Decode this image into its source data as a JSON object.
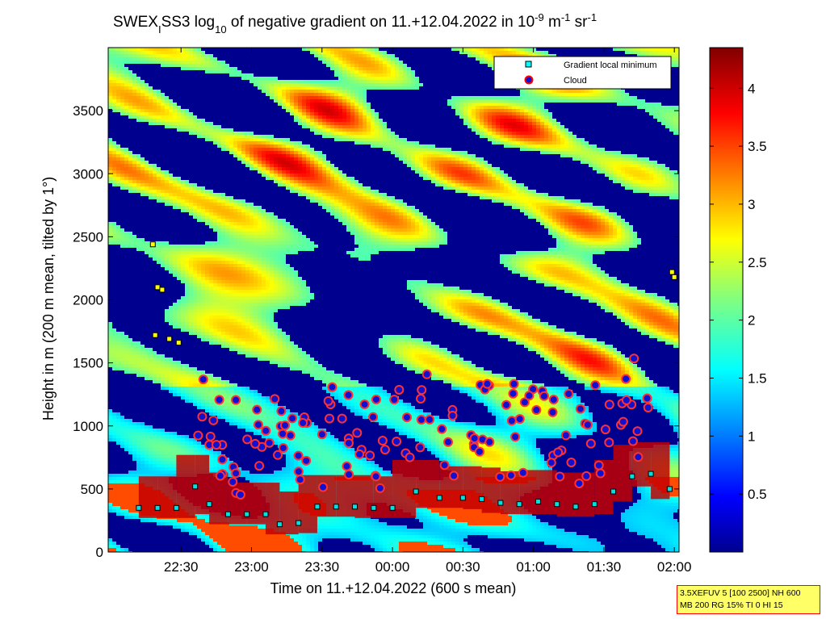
{
  "chart_data": {
    "type": "heatmap",
    "title": {
      "part1": "SWEX",
      "sub1": "I",
      "part2": "SS3 log",
      "sub2": "10",
      "part3": " of negative gradient on 11.+12.04.2022 in 10",
      "sup1": "-9",
      "part4": " m",
      "sup2": "-1",
      "part5": " sr",
      "sup3": "-1"
    },
    "xlabel": "Time on 11.+12.04.2022 (600 s mean)",
    "ylabel": "Height in m (200 m mean, tilted by 1°)",
    "x_ticks": [
      "22:30",
      "23:00",
      "23:30",
      "00:00",
      "00:30",
      "01:00",
      "01:30",
      "02:00"
    ],
    "x_tick_minutes": [
      1350,
      1380,
      1410,
      1440,
      1470,
      1500,
      1530,
      1560
    ],
    "xlim_minutes": [
      1319,
      1562
    ],
    "y_ticks": [
      "0",
      "500",
      "1000",
      "1500",
      "2000",
      "2500",
      "3000",
      "3500"
    ],
    "y_tick_values": [
      0,
      500,
      1000,
      1500,
      2000,
      2500,
      3000,
      3500
    ],
    "ylim": [
      0,
      4000
    ],
    "colorbar": {
      "ticks": [
        "0.5",
        "1",
        "1.5",
        "2",
        "2.5",
        "3",
        "3.5",
        "4"
      ],
      "tick_values": [
        0.5,
        1,
        1.5,
        2,
        2.5,
        3,
        3.5,
        4
      ],
      "range": [
        0,
        4.35
      ],
      "colormap": "jet"
    },
    "legend": {
      "placement": "top-right",
      "entries": [
        {
          "label": "Gradient local minimum",
          "marker": "square",
          "color": "#00ffff"
        },
        {
          "label": "Cloud",
          "marker": "circle",
          "color": "#0000ff",
          "edge": "#ff0000"
        }
      ]
    },
    "cloud_base_trace": [
      {
        "t": 1332,
        "h": 350
      },
      {
        "t": 1340,
        "h": 350
      },
      {
        "t": 1348,
        "h": 350
      },
      {
        "t": 1356,
        "h": 520
      },
      {
        "t": 1362,
        "h": 380
      },
      {
        "t": 1370,
        "h": 300
      },
      {
        "t": 1378,
        "h": 300
      },
      {
        "t": 1386,
        "h": 300
      },
      {
        "t": 1392,
        "h": 220
      },
      {
        "t": 1400,
        "h": 230
      },
      {
        "t": 1408,
        "h": 360
      },
      {
        "t": 1416,
        "h": 360
      },
      {
        "t": 1424,
        "h": 360
      },
      {
        "t": 1432,
        "h": 350
      },
      {
        "t": 1440,
        "h": 350
      },
      {
        "t": 1450,
        "h": 480
      },
      {
        "t": 1460,
        "h": 430
      },
      {
        "t": 1470,
        "h": 430
      },
      {
        "t": 1478,
        "h": 420
      },
      {
        "t": 1486,
        "h": 390
      },
      {
        "t": 1494,
        "h": 380
      },
      {
        "t": 1502,
        "h": 400
      },
      {
        "t": 1510,
        "h": 380
      },
      {
        "t": 1518,
        "h": 360
      },
      {
        "t": 1526,
        "h": 380
      },
      {
        "t": 1534,
        "h": 480
      },
      {
        "t": 1542,
        "h": 600
      },
      {
        "t": 1550,
        "h": 620
      },
      {
        "t": 1558,
        "h": 500
      }
    ],
    "upper_minima": [
      {
        "t": 1338,
        "h": 2440
      },
      {
        "t": 1340,
        "h": 2100
      },
      {
        "t": 1342,
        "h": 2080
      },
      {
        "t": 1339,
        "h": 1720
      },
      {
        "t": 1345,
        "h": 1690
      },
      {
        "t": 1349,
        "h": 1660
      },
      {
        "t": 1559,
        "h": 2220
      },
      {
        "t": 1560,
        "h": 2180
      }
    ]
  },
  "info_box": {
    "line1": "3.5XEFUV 5 [100 2500] NH 600",
    "line2": "MB 200 RG 15% TI 0 HI 15"
  }
}
